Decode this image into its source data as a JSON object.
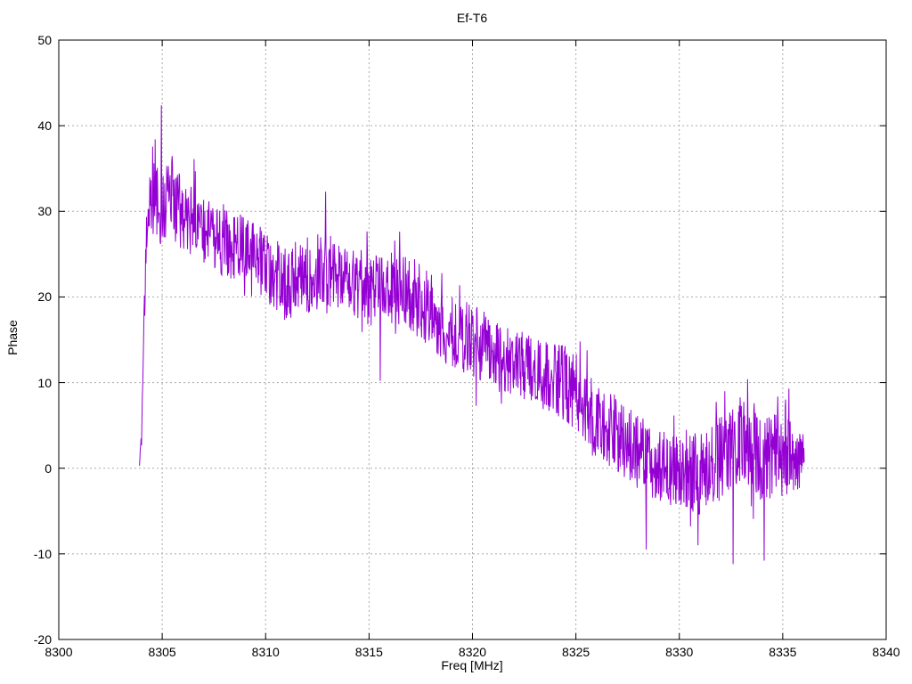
{
  "page": {
    "background": "#ffffff",
    "text_color": "#000000"
  },
  "chart_data": {
    "type": "line",
    "title": "Ef-T6",
    "xlabel": "Freq [MHz]",
    "ylabel": "Phase",
    "xlim": [
      8300,
      8340
    ],
    "ylim": [
      -20,
      50
    ],
    "x_ticks": [
      8300,
      8305,
      8310,
      8315,
      8320,
      8325,
      8330,
      8335,
      8340
    ],
    "y_ticks": [
      -20,
      -10,
      0,
      10,
      20,
      30,
      40,
      50
    ],
    "grid": true,
    "legend": "none",
    "colors": {
      "line": "#9400d3",
      "grid": "#aaaaaa",
      "axis": "#000000",
      "text": "#000000"
    },
    "series": [
      {
        "name": "phase",
        "x_start": 8303.9,
        "x_end": 8336.05,
        "sample_step": 0.02,
        "noise_seed": 987654321,
        "spike_chance": 0.06,
        "spike_gain": 1.7,
        "trend_points": [
          [
            8303.9,
            0.3,
            0.2
          ],
          [
            8304.0,
            4.0,
            1.0
          ],
          [
            8304.12,
            16.0,
            2.5
          ],
          [
            8304.25,
            28.0,
            3.0
          ],
          [
            8304.5,
            31.5,
            4.5
          ],
          [
            8305.0,
            31.0,
            5.0
          ],
          [
            8305.5,
            31.5,
            4.5
          ],
          [
            8306.0,
            29.5,
            4.5
          ],
          [
            8307.0,
            28.0,
            4.0
          ],
          [
            8308.0,
            26.5,
            4.5
          ],
          [
            8309.0,
            25.5,
            4.0
          ],
          [
            8310.0,
            23.5,
            4.0
          ],
          [
            8311.0,
            21.5,
            4.5
          ],
          [
            8312.0,
            22.5,
            4.5
          ],
          [
            8313.0,
            23.5,
            4.5
          ],
          [
            8314.0,
            21.5,
            4.0
          ],
          [
            8315.0,
            21.0,
            4.5
          ],
          [
            8316.0,
            21.5,
            4.0
          ],
          [
            8317.0,
            20.5,
            4.5
          ],
          [
            8318.0,
            18.5,
            4.5
          ],
          [
            8319.0,
            15.5,
            4.0
          ],
          [
            8320.0,
            15.0,
            4.5
          ],
          [
            8321.0,
            13.5,
            4.0
          ],
          [
            8322.0,
            12.5,
            4.5
          ],
          [
            8323.0,
            11.0,
            4.0
          ],
          [
            8324.0,
            10.5,
            4.5
          ],
          [
            8325.0,
            9.0,
            4.5
          ],
          [
            8326.0,
            5.5,
            4.0
          ],
          [
            8327.0,
            4.0,
            4.5
          ],
          [
            8328.0,
            2.0,
            4.5
          ],
          [
            8329.0,
            0.5,
            4.5
          ],
          [
            8330.0,
            -0.5,
            4.5
          ],
          [
            8331.0,
            -1.0,
            5.0
          ],
          [
            8332.0,
            1.0,
            5.0
          ],
          [
            8333.0,
            3.5,
            5.0
          ],
          [
            8334.0,
            1.0,
            5.0
          ],
          [
            8335.0,
            1.5,
            5.0
          ],
          [
            8335.8,
            1.0,
            3.5
          ],
          [
            8336.05,
            1.0,
            1.5
          ]
        ],
        "extremes": [
          [
            8304.65,
            38.4
          ],
          [
            8304.95,
            42.4
          ],
          [
            8306.55,
            36.1
          ],
          [
            8312.9,
            32.3
          ],
          [
            8315.55,
            10.2
          ],
          [
            8325.2,
            14.8
          ],
          [
            8328.4,
            -9.5
          ],
          [
            8330.9,
            -9.0
          ],
          [
            8332.6,
            -11.2
          ],
          [
            8333.3,
            10.4
          ],
          [
            8334.1,
            -10.8
          ],
          [
            8335.3,
            9.3
          ]
        ]
      }
    ]
  }
}
